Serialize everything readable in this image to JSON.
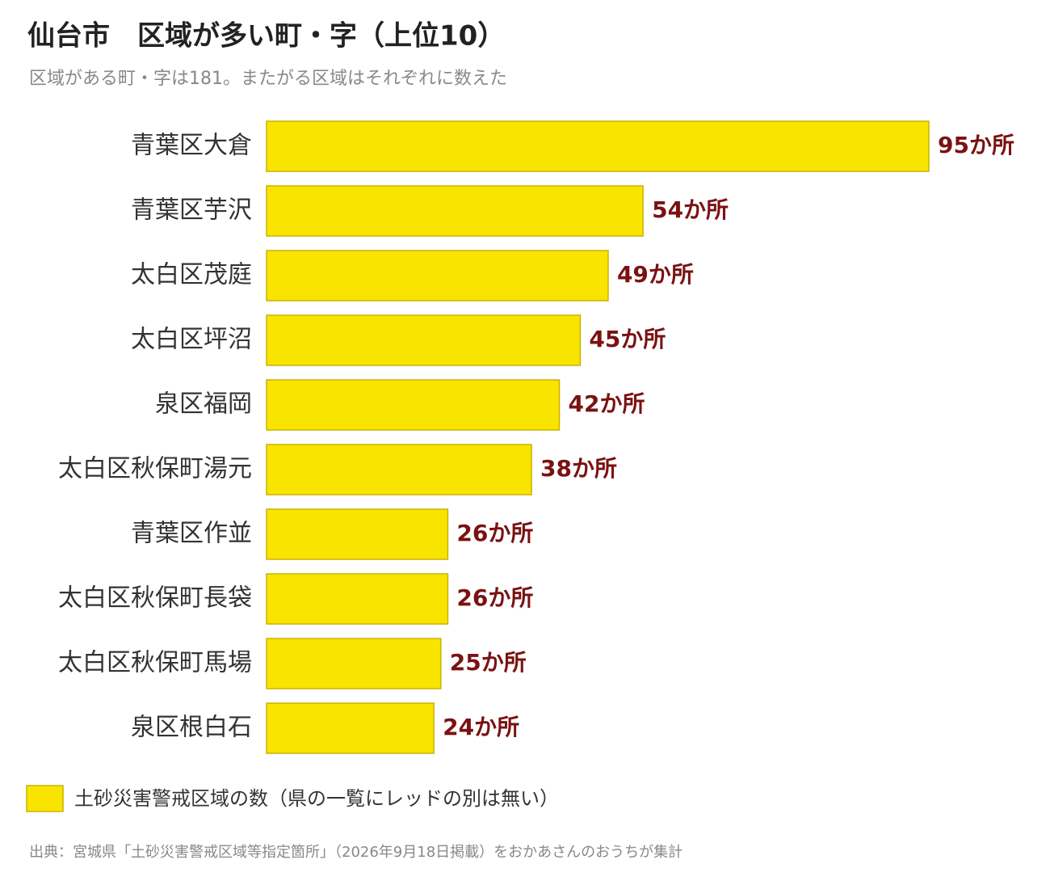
{
  "chart_data": {
    "type": "bar",
    "orientation": "horizontal",
    "title": "仙台市　区域が多い町・字（上位10）",
    "subtitle": "区域がある町・字は181。またがる区域はそれぞれに数えた",
    "categories": [
      "青葉区大倉",
      "青葉区芋沢",
      "太白区茂庭",
      "太白区坪沼",
      "泉区福岡",
      "太白区秋保町湯元",
      "青葉区作並",
      "太白区秋保町長袋",
      "太白区秋保町馬場",
      "泉区根白石"
    ],
    "series": [
      {
        "name": "土砂災害警戒区域の数（県の一覧にレッドの別は無い）",
        "color": "#f9e400",
        "values": [
          95,
          54,
          49,
          45,
          42,
          38,
          26,
          26,
          25,
          24
        ],
        "value_labels": [
          "95か所",
          "54か所",
          "49か所",
          "45か所",
          "42か所",
          "38か所",
          "26か所",
          "26か所",
          "25か所",
          "24か所"
        ]
      }
    ],
    "source": "出典：宮城県「土砂災害警戒区域等指定箇所」（2026年9月18日掲載）をおかあさんのおうちが集計"
  }
}
